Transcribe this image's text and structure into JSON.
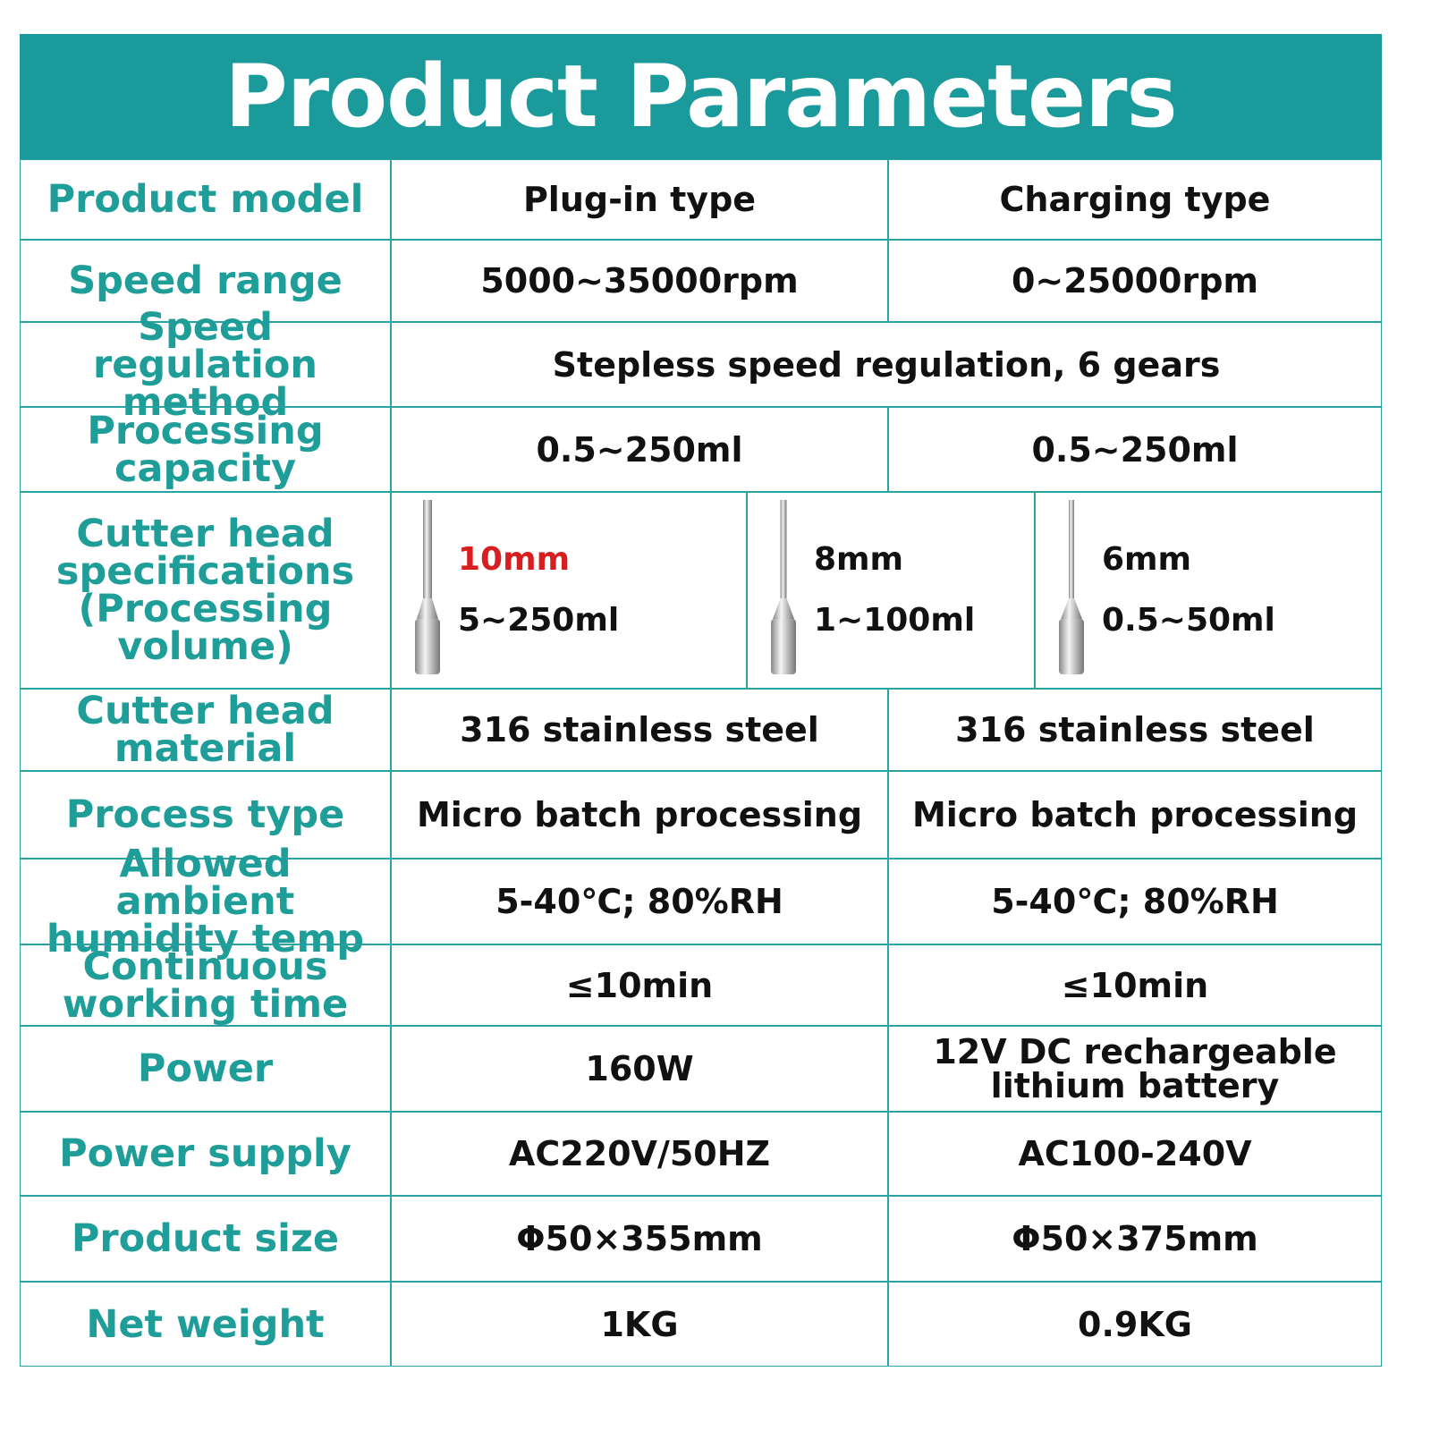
{
  "header": {
    "title": "Product Parameters"
  },
  "table": {
    "rows": [
      {
        "label": "Product model",
        "values": [
          "Plug-in type",
          "Charging type"
        ]
      },
      {
        "label": "Speed range",
        "values": [
          "5000~35000rpm",
          "0~25000rpm"
        ]
      },
      {
        "label": "Speed regulation method",
        "values": [
          "Stepless speed regulation, 6 gears"
        ]
      },
      {
        "label": "Processing capacity",
        "values": [
          "0.5~250ml",
          "0.5~250ml"
        ]
      },
      {
        "label": "Cutter head specifications (Processing volume)",
        "heads": [
          {
            "size": "10mm",
            "volume": "5~250ml"
          },
          {
            "size": "8mm",
            "volume": "1~100ml"
          },
          {
            "size": "6mm",
            "volume": "0.5~50ml"
          }
        ]
      },
      {
        "label": "Cutter head material",
        "values": [
          "316 stainless steel",
          "316 stainless steel"
        ]
      },
      {
        "label": "Process type",
        "values": [
          "Micro batch processing",
          "Micro batch processing"
        ]
      },
      {
        "label": "Allowed ambient humidity temp",
        "values": [
          "5-40℃; 80%RH",
          "5-40℃; 80%RH"
        ]
      },
      {
        "label": "Continuous working time",
        "values": [
          "≤10min",
          "≤10min"
        ]
      },
      {
        "label": "Power",
        "values": [
          "160W",
          "12V DC rechargeable lithium battery"
        ]
      },
      {
        "label": "Power supply",
        "values": [
          "AC220V/50HZ",
          "AC100-240V"
        ]
      },
      {
        "label": "Product size",
        "values": [
          "Φ50×355mm",
          "Φ50×375mm"
        ]
      },
      {
        "label": "Net weight",
        "values": [
          "1KG",
          "0.9KG"
        ]
      }
    ]
  }
}
